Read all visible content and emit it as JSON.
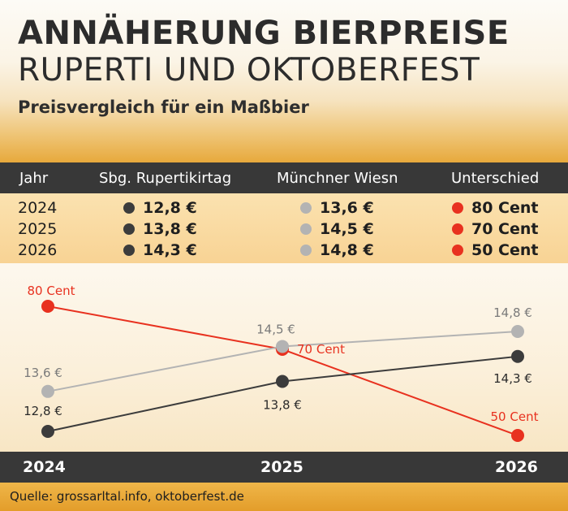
{
  "header": {
    "title_line1": "ANNÄHERUNG BIERPREISE",
    "title_line2": "RUPERTI UND OKTOBERFEST",
    "subtitle": "Preisvergleich für ein Maßbier"
  },
  "table": {
    "headers": [
      "Jahr",
      "Sbg. Rupertikirtag",
      "Münchner Wiesn",
      "Unterschied"
    ],
    "rows": [
      {
        "year": "2024",
        "ruperti": "12,8 €",
        "wiesn": "13,6 €",
        "diff": "80 Cent"
      },
      {
        "year": "2025",
        "ruperti": "13,8 €",
        "wiesn": "14,5 €",
        "diff": "70 Cent"
      },
      {
        "year": "2026",
        "ruperti": "14,3 €",
        "wiesn": "14,8 €",
        "diff": "50 Cent"
      }
    ]
  },
  "colors": {
    "ruperti": "#3c3c3c",
    "wiesn": "#b3b3b3",
    "diff": "#e8311f",
    "dark_band": "#383838"
  },
  "chart_data": {
    "type": "line",
    "x": [
      "2024",
      "2025",
      "2026"
    ],
    "series": [
      {
        "key": "wiesn",
        "values": [
          13.6,
          14.5,
          14.8
        ],
        "labels": [
          "13,6 €",
          "14,5 €",
          "14,8 €"
        ],
        "color": "#b3b3b3"
      },
      {
        "key": "ruperti",
        "values": [
          12.8,
          13.8,
          14.3
        ],
        "labels": [
          "12,8 €",
          "13,8 €",
          "14,3 €"
        ],
        "color": "#3c3c3c"
      },
      {
        "key": "diff",
        "values": [
          80,
          70,
          50
        ],
        "labels": [
          "80 Cent",
          "70 Cent",
          "50 Cent"
        ],
        "color": "#e8311f"
      }
    ],
    "grid": false,
    "legend": "none"
  },
  "footer": {
    "source": "Quelle: grossarltal.info, oktoberfest.de"
  }
}
